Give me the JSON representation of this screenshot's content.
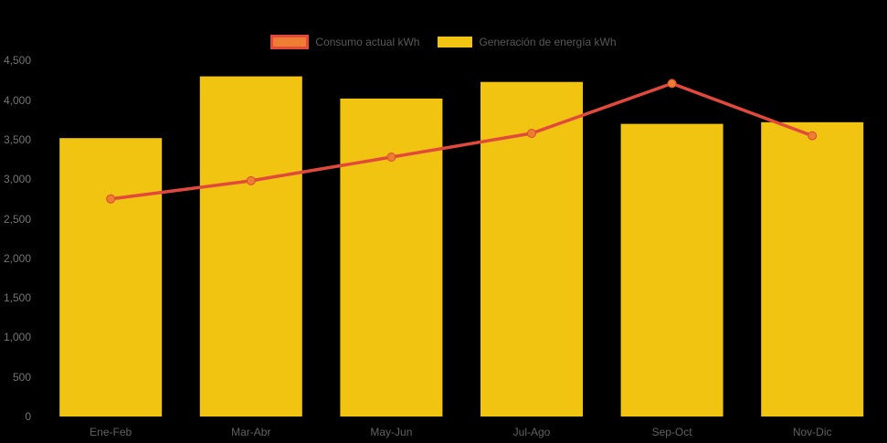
{
  "page": {
    "background_color": "#000000"
  },
  "legend": {
    "items": [
      {
        "label": "Consumo actual kWh",
        "series_type": "line",
        "swatch_fill": "#ED7D31",
        "swatch_border": "#E2493D"
      },
      {
        "label": "Generación de energía kWh",
        "series_type": "bar",
        "swatch_fill": "#F1C411",
        "swatch_border": "#F1C411"
      }
    ],
    "text_color": "#595959",
    "position": "top-center"
  },
  "chart_data": {
    "type": "bar",
    "subtype": "bar-with-line-overlay",
    "title": "",
    "xlabel": "",
    "ylabel": "",
    "categories": [
      "Ene-Feb",
      "Mar-Abr",
      "May-Jun",
      "Jul-Ago",
      "Sep-Oct",
      "Nov-Dic"
    ],
    "series": [
      {
        "name": "Generación de energía kWh",
        "type": "bar",
        "color": "#F1C411",
        "values": [
          3520,
          4300,
          4020,
          4230,
          3700,
          3720
        ]
      },
      {
        "name": "Consumo actual kWh",
        "type": "line",
        "line_color": "#E2493D",
        "marker_fill": "#ED7D31",
        "marker_stroke": "#D84A38",
        "values": [
          2750,
          2980,
          3280,
          3580,
          4210,
          3550
        ]
      }
    ],
    "ylim": [
      0,
      4500
    ],
    "y_tick_step": 500,
    "y_ticks": [
      "0",
      "500",
      "1,000",
      "1,500",
      "2,000",
      "2,500",
      "3,000",
      "3,500",
      "4,000",
      "4,500"
    ],
    "grid": false,
    "legend_position": "top",
    "axis_text_color": "#747474",
    "x_axis_text_color": "#616161",
    "unit": "kWh"
  }
}
